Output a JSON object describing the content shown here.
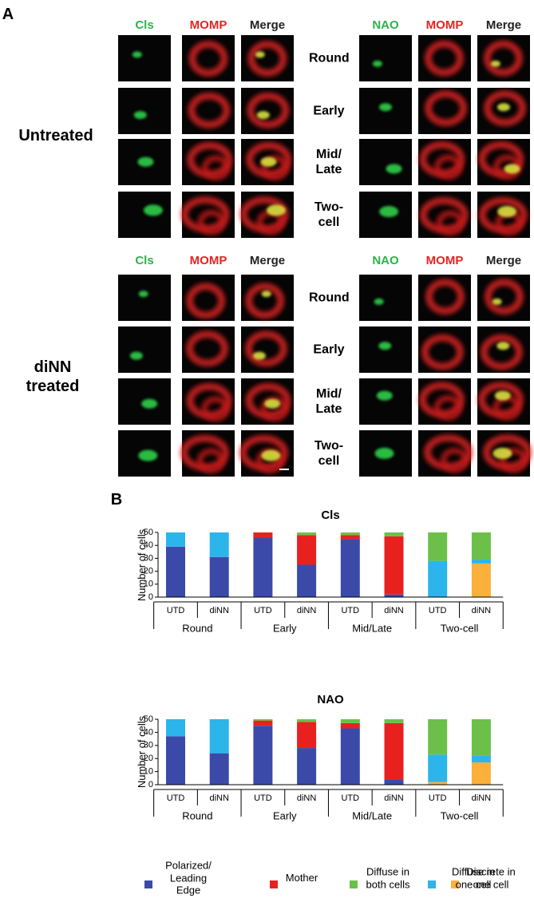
{
  "panel_a": {
    "label": "A",
    "blocks": [
      {
        "label": "Untreated",
        "left_headers": [
          "Cls",
          "MOMP",
          "Merge"
        ],
        "right_headers": [
          "NAO",
          "MOMP",
          "Merge"
        ],
        "rows": [
          "Round",
          "Early",
          "Mid/ Late",
          "Two- cell"
        ]
      },
      {
        "label": "diNN treated",
        "left_headers": [
          "Cls",
          "MOMP",
          "Merge"
        ],
        "right_headers": [
          "NAO",
          "MOMP",
          "Merge"
        ],
        "rows": [
          "Round",
          "Early",
          "Mid/ Late",
          "Two- cell"
        ]
      }
    ]
  },
  "panel_b_label": "B",
  "chart_data": [
    {
      "type": "stacked_bar",
      "title": "Cls",
      "y_label": "Number of cells",
      "categories": [
        "UTD",
        "diNN",
        "UTD",
        "diNN",
        "UTD",
        "diNN",
        "UTD",
        "diNN"
      ],
      "groups": [
        "Round",
        "Early",
        "Mid/Late",
        "Two-cell"
      ],
      "ylim": [
        0,
        50
      ],
      "yticks": [
        0,
        10,
        20,
        30,
        40,
        50
      ],
      "series": [
        {
          "name": "Polarized/ Leading Edge",
          "color": "#3b4aa8",
          "values": [
            39,
            31,
            46,
            25,
            45,
            2,
            0,
            0
          ]
        },
        {
          "name": "Mother",
          "color": "#e8211f",
          "values": [
            0,
            0,
            4,
            23,
            3,
            45,
            0,
            0
          ]
        },
        {
          "name": "Discrete in one cell",
          "color": "#fbb03b",
          "values": [
            0,
            0,
            0,
            0,
            0,
            0,
            0,
            26
          ]
        },
        {
          "name": "Diffuse in one cell",
          "color": "#2bb5ea",
          "values": [
            11,
            19,
            0,
            0,
            0,
            0,
            28,
            3
          ]
        },
        {
          "name": "Diffuse in both cells",
          "color": "#6cc04a",
          "values": [
            0,
            0,
            0,
            2,
            2,
            3,
            22,
            21
          ]
        }
      ]
    },
    {
      "type": "stacked_bar",
      "title": "NAO",
      "y_label": "Number of cells",
      "categories": [
        "UTD",
        "diNN",
        "UTD",
        "diNN",
        "UTD",
        "diNN",
        "UTD",
        "diNN"
      ],
      "groups": [
        "Round",
        "Early",
        "Mid/Late",
        "Two-cell"
      ],
      "ylim": [
        0,
        50
      ],
      "yticks": [
        0,
        10,
        20,
        30,
        40,
        50
      ],
      "series": [
        {
          "name": "Polarized/ Leading Edge",
          "color": "#3b4aa8",
          "values": [
            37,
            24,
            45,
            28,
            43,
            4,
            0,
            0
          ]
        },
        {
          "name": "Mother",
          "color": "#e8211f",
          "values": [
            0,
            0,
            4,
            20,
            4,
            43,
            0,
            0
          ]
        },
        {
          "name": "Discrete in one cell",
          "color": "#fbb03b",
          "values": [
            0,
            0,
            0,
            0,
            0,
            0,
            2,
            17
          ]
        },
        {
          "name": "Diffuse in one cell",
          "color": "#2bb5ea",
          "values": [
            13,
            26,
            0,
            0,
            0,
            0,
            21,
            5
          ]
        },
        {
          "name": "Diffuse in both cells",
          "color": "#6cc04a",
          "values": [
            0,
            0,
            1,
            2,
            3,
            3,
            27,
            28
          ]
        }
      ]
    }
  ]
}
